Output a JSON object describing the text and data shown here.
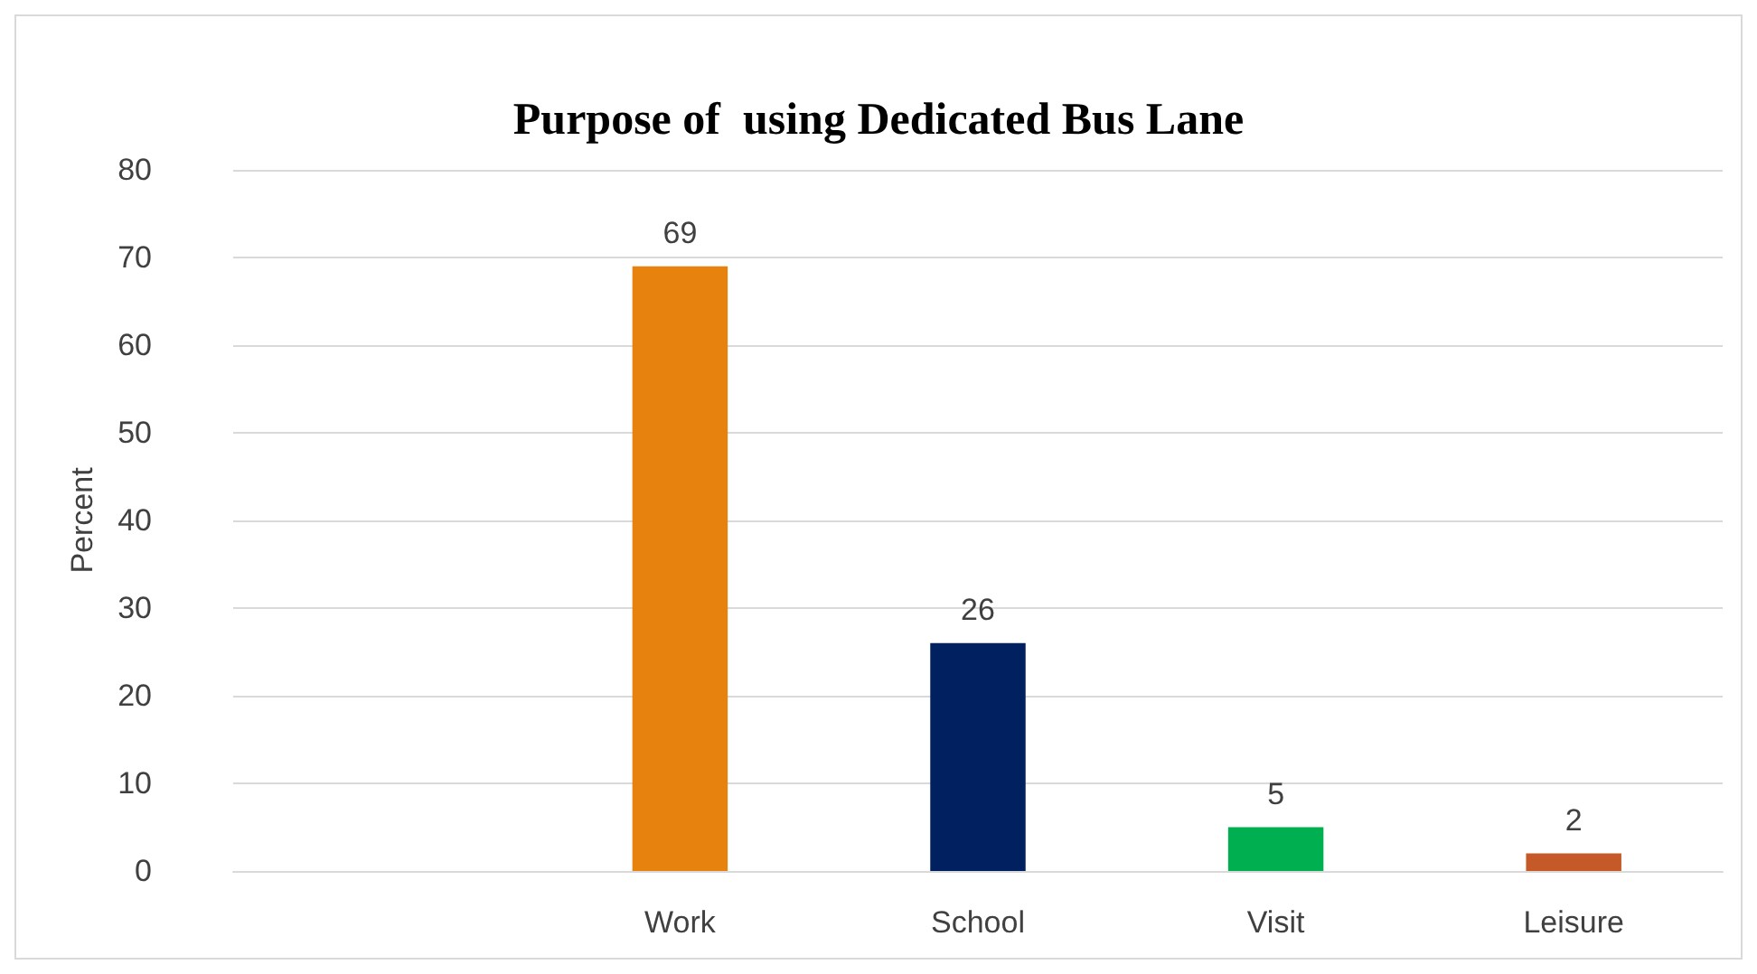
{
  "chart_data": {
    "type": "bar",
    "title": "Purpose of  using Dedicated Bus Lane",
    "ylabel": "Percent",
    "categories": [
      null,
      "Work",
      "School",
      "Visit",
      "Leisure"
    ],
    "values": [
      null,
      69,
      26,
      5,
      2
    ],
    "colors": [
      "#e8820e",
      "#e8820e",
      "#002060",
      "#00b050",
      "#c55a28"
    ],
    "ylim": [
      0,
      80
    ],
    "yticks": [
      0,
      10,
      20,
      30,
      40,
      50,
      60,
      70,
      80
    ],
    "grid": "y",
    "data_labels": true
  }
}
